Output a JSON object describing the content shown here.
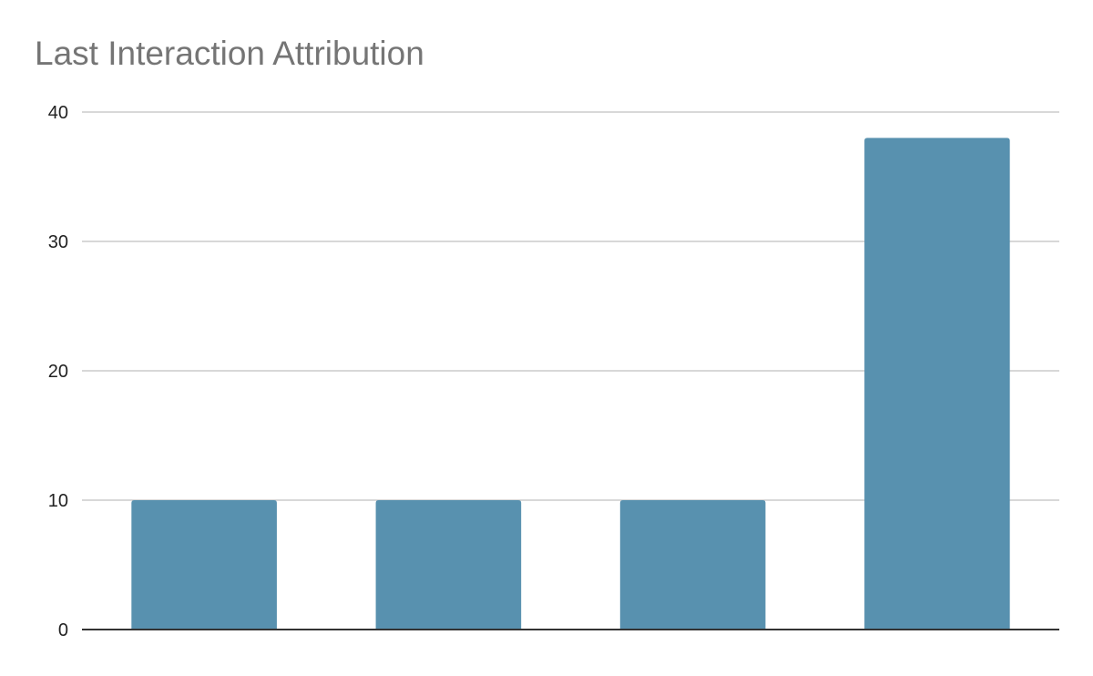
{
  "chart_data": {
    "type": "bar",
    "title": "Last Interaction Attribution",
    "xlabel": "",
    "ylabel": "",
    "categories": [
      "",
      "",
      "",
      ""
    ],
    "values": [
      10,
      10,
      10,
      38
    ],
    "ylim": [
      0,
      40
    ],
    "yticks": [
      "0",
      "10",
      "20",
      "30",
      "40"
    ],
    "grid": true,
    "legend": "none",
    "bar_color": "#5891AF"
  }
}
